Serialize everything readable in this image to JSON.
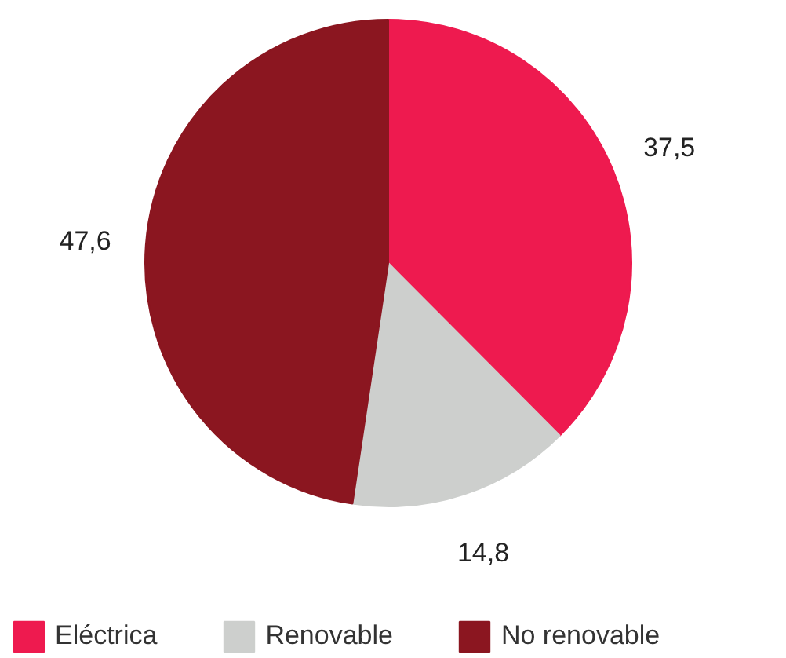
{
  "chart_data": {
    "type": "pie",
    "categories": [
      "Eléctrica",
      "Renovable",
      "No renovable"
    ],
    "values": [
      37.5,
      14.8,
      47.6
    ],
    "value_labels": [
      "37,5",
      "14,8",
      "47,6"
    ],
    "colors": [
      "#ee1a4f",
      "#cdcfcd",
      "#8b1620"
    ],
    "legend": "bottom"
  }
}
